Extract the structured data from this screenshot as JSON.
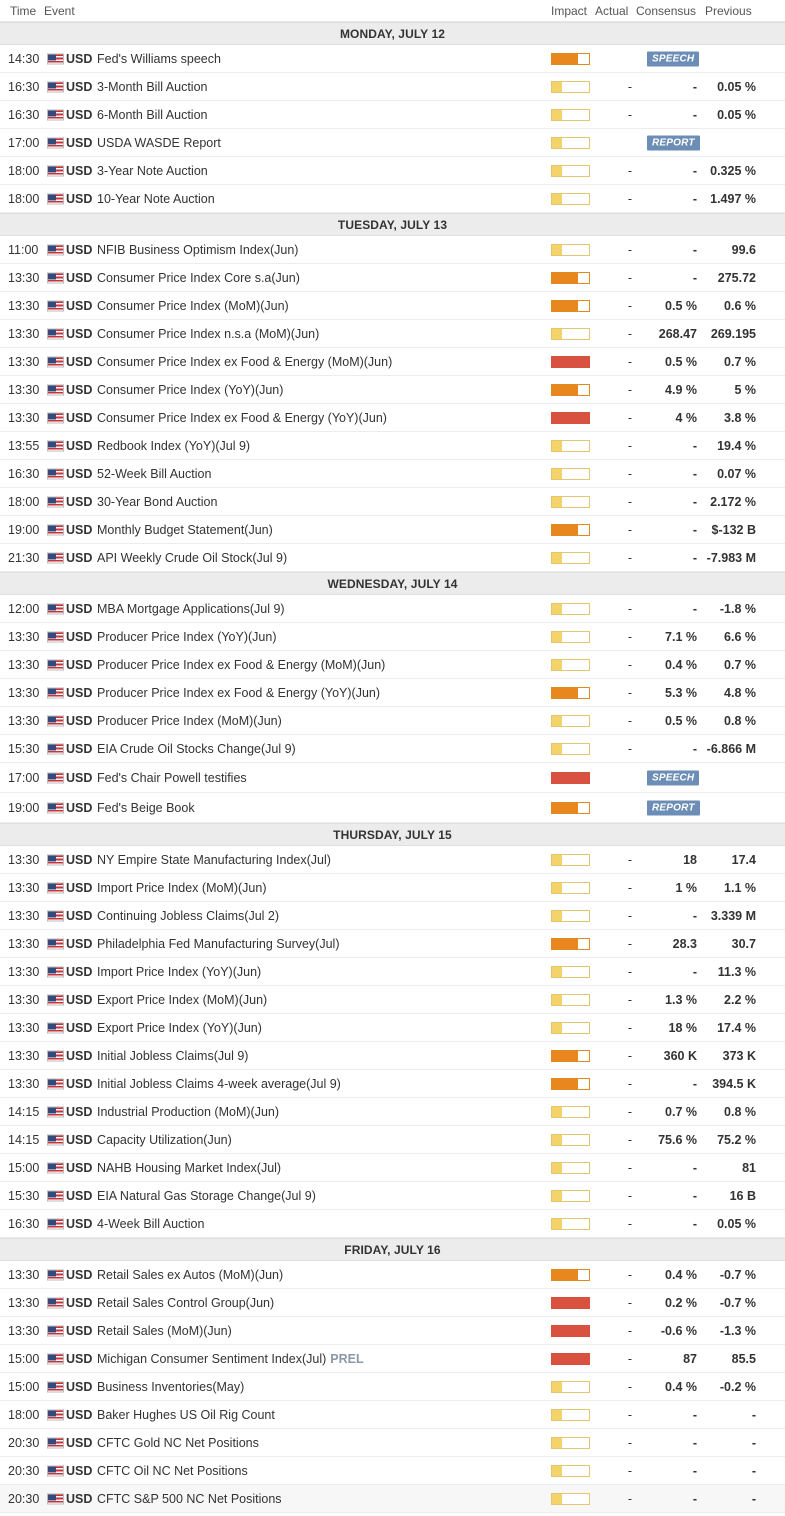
{
  "header": {
    "time": "Time",
    "event": "Event",
    "impact": "Impact",
    "actual": "Actual",
    "consensus": "Consensus",
    "previous": "Previous"
  },
  "days": [
    {
      "label": "MONDAY, JULY 12",
      "events": [
        {
          "time": "14:30",
          "currency": "USD",
          "event": "Fed's Williams speech",
          "impact": "med",
          "actual": "",
          "consensus": "",
          "previous": "",
          "tag": "SPEECH"
        },
        {
          "time": "16:30",
          "currency": "USD",
          "event": "3-Month Bill Auction",
          "impact": "low",
          "actual": "-",
          "consensus": "-",
          "previous": "0.05 %"
        },
        {
          "time": "16:30",
          "currency": "USD",
          "event": "6-Month Bill Auction",
          "impact": "low",
          "actual": "-",
          "consensus": "-",
          "previous": "0.05 %"
        },
        {
          "time": "17:00",
          "currency": "USD",
          "event": "USDA WASDE Report",
          "impact": "low",
          "actual": "",
          "consensus": "",
          "previous": "",
          "tag": "REPORT"
        },
        {
          "time": "18:00",
          "currency": "USD",
          "event": "3-Year Note Auction",
          "impact": "low",
          "actual": "-",
          "consensus": "-",
          "previous": "0.325 %"
        },
        {
          "time": "18:00",
          "currency": "USD",
          "event": "10-Year Note Auction",
          "impact": "low",
          "actual": "-",
          "consensus": "-",
          "previous": "1.497 %"
        }
      ]
    },
    {
      "label": "TUESDAY, JULY 13",
      "events": [
        {
          "time": "11:00",
          "currency": "USD",
          "event": "NFIB Business Optimism Index(Jun)",
          "impact": "low",
          "actual": "-",
          "consensus": "-",
          "previous": "99.6"
        },
        {
          "time": "13:30",
          "currency": "USD",
          "event": "Consumer Price Index Core s.a(Jun)",
          "impact": "med",
          "actual": "-",
          "consensus": "-",
          "previous": "275.72"
        },
        {
          "time": "13:30",
          "currency": "USD",
          "event": "Consumer Price Index (MoM)(Jun)",
          "impact": "med",
          "actual": "-",
          "consensus": "0.5 %",
          "previous": "0.6 %"
        },
        {
          "time": "13:30",
          "currency": "USD",
          "event": "Consumer Price Index n.s.a (MoM)(Jun)",
          "impact": "low",
          "actual": "-",
          "consensus": "268.47",
          "previous": "269.195"
        },
        {
          "time": "13:30",
          "currency": "USD",
          "event": "Consumer Price Index ex Food & Energy (MoM)(Jun)",
          "impact": "high",
          "actual": "-",
          "consensus": "0.5 %",
          "previous": "0.7 %"
        },
        {
          "time": "13:30",
          "currency": "USD",
          "event": "Consumer Price Index (YoY)(Jun)",
          "impact": "med",
          "actual": "-",
          "consensus": "4.9 %",
          "previous": "5 %"
        },
        {
          "time": "13:30",
          "currency": "USD",
          "event": "Consumer Price Index ex Food & Energy (YoY)(Jun)",
          "impact": "high",
          "actual": "-",
          "consensus": "4 %",
          "previous": "3.8 %"
        },
        {
          "time": "13:55",
          "currency": "USD",
          "event": "Redbook Index (YoY)(Jul 9)",
          "impact": "low",
          "actual": "-",
          "consensus": "-",
          "previous": "19.4 %"
        },
        {
          "time": "16:30",
          "currency": "USD",
          "event": "52-Week Bill Auction",
          "impact": "low",
          "actual": "-",
          "consensus": "-",
          "previous": "0.07 %"
        },
        {
          "time": "18:00",
          "currency": "USD",
          "event": "30-Year Bond Auction",
          "impact": "low",
          "actual": "-",
          "consensus": "-",
          "previous": "2.172 %"
        },
        {
          "time": "19:00",
          "currency": "USD",
          "event": "Monthly Budget Statement(Jun)",
          "impact": "med",
          "actual": "-",
          "consensus": "-",
          "previous": "$-132 B"
        },
        {
          "time": "21:30",
          "currency": "USD",
          "event": "API Weekly Crude Oil Stock(Jul 9)",
          "impact": "low",
          "actual": "-",
          "consensus": "-",
          "previous": "-7.983 M"
        }
      ]
    },
    {
      "label": "WEDNESDAY, JULY 14",
      "events": [
        {
          "time": "12:00",
          "currency": "USD",
          "event": "MBA Mortgage Applications(Jul 9)",
          "impact": "low",
          "actual": "-",
          "consensus": "-",
          "previous": "-1.8 %"
        },
        {
          "time": "13:30",
          "currency": "USD",
          "event": "Producer Price Index (YoY)(Jun)",
          "impact": "low",
          "actual": "-",
          "consensus": "7.1 %",
          "previous": "6.6 %"
        },
        {
          "time": "13:30",
          "currency": "USD",
          "event": "Producer Price Index ex Food & Energy (MoM)(Jun)",
          "impact": "low",
          "actual": "-",
          "consensus": "0.4 %",
          "previous": "0.7 %"
        },
        {
          "time": "13:30",
          "currency": "USD",
          "event": "Producer Price Index ex Food & Energy (YoY)(Jun)",
          "impact": "med",
          "actual": "-",
          "consensus": "5.3 %",
          "previous": "4.8 %"
        },
        {
          "time": "13:30",
          "currency": "USD",
          "event": "Producer Price Index (MoM)(Jun)",
          "impact": "low",
          "actual": "-",
          "consensus": "0.5 %",
          "previous": "0.8 %"
        },
        {
          "time": "15:30",
          "currency": "USD",
          "event": "EIA Crude Oil Stocks Change(Jul 9)",
          "impact": "low",
          "actual": "-",
          "consensus": "-",
          "previous": "-6.866 M"
        },
        {
          "time": "17:00",
          "currency": "USD",
          "event": "Fed's Chair Powell testifies",
          "impact": "high",
          "actual": "",
          "consensus": "",
          "previous": "",
          "tag": "SPEECH",
          "tall": true
        },
        {
          "time": "19:00",
          "currency": "USD",
          "event": "Fed's Beige Book",
          "impact": "med",
          "actual": "",
          "consensus": "",
          "previous": "",
          "tag": "REPORT",
          "tall": true
        }
      ]
    },
    {
      "label": "THURSDAY, JULY 15",
      "events": [
        {
          "time": "13:30",
          "currency": "USD",
          "event": "NY Empire State Manufacturing Index(Jul)",
          "impact": "low",
          "actual": "-",
          "consensus": "18",
          "previous": "17.4"
        },
        {
          "time": "13:30",
          "currency": "USD",
          "event": "Import Price Index (MoM)(Jun)",
          "impact": "low",
          "actual": "-",
          "consensus": "1 %",
          "previous": "1.1 %"
        },
        {
          "time": "13:30",
          "currency": "USD",
          "event": "Continuing Jobless Claims(Jul 2)",
          "impact": "low",
          "actual": "-",
          "consensus": "-",
          "previous": "3.339 M"
        },
        {
          "time": "13:30",
          "currency": "USD",
          "event": "Philadelphia Fed Manufacturing Survey(Jul)",
          "impact": "med",
          "actual": "-",
          "consensus": "28.3",
          "previous": "30.7"
        },
        {
          "time": "13:30",
          "currency": "USD",
          "event": "Import Price Index (YoY)(Jun)",
          "impact": "low",
          "actual": "-",
          "consensus": "-",
          "previous": "11.3 %"
        },
        {
          "time": "13:30",
          "currency": "USD",
          "event": "Export Price Index (MoM)(Jun)",
          "impact": "low",
          "actual": "-",
          "consensus": "1.3 %",
          "previous": "2.2 %"
        },
        {
          "time": "13:30",
          "currency": "USD",
          "event": "Export Price Index (YoY)(Jun)",
          "impact": "low",
          "actual": "-",
          "consensus": "18 %",
          "previous": "17.4 %"
        },
        {
          "time": "13:30",
          "currency": "USD",
          "event": "Initial Jobless Claims(Jul 9)",
          "impact": "med",
          "actual": "-",
          "consensus": "360 K",
          "previous": "373 K"
        },
        {
          "time": "13:30",
          "currency": "USD",
          "event": "Initial Jobless Claims 4-week average(Jul 9)",
          "impact": "med",
          "actual": "-",
          "consensus": "-",
          "previous": "394.5 K"
        },
        {
          "time": "14:15",
          "currency": "USD",
          "event": "Industrial Production (MoM)(Jun)",
          "impact": "low",
          "actual": "-",
          "consensus": "0.7 %",
          "previous": "0.8 %"
        },
        {
          "time": "14:15",
          "currency": "USD",
          "event": "Capacity Utilization(Jun)",
          "impact": "low",
          "actual": "-",
          "consensus": "75.6 %",
          "previous": "75.2 %"
        },
        {
          "time": "15:00",
          "currency": "USD",
          "event": "NAHB Housing Market Index(Jul)",
          "impact": "low",
          "actual": "-",
          "consensus": "-",
          "previous": "81"
        },
        {
          "time": "15:30",
          "currency": "USD",
          "event": "EIA Natural Gas Storage Change(Jul 9)",
          "impact": "low",
          "actual": "-",
          "consensus": "-",
          "previous": "16 B"
        },
        {
          "time": "16:30",
          "currency": "USD",
          "event": "4-Week Bill Auction",
          "impact": "low",
          "actual": "-",
          "consensus": "-",
          "previous": "0.05 %"
        }
      ]
    },
    {
      "label": "FRIDAY, JULY 16",
      "events": [
        {
          "time": "13:30",
          "currency": "USD",
          "event": "Retail Sales ex Autos (MoM)(Jun)",
          "impact": "med",
          "actual": "-",
          "consensus": "0.4 %",
          "previous": "-0.7 %"
        },
        {
          "time": "13:30",
          "currency": "USD",
          "event": "Retail Sales Control Group(Jun)",
          "impact": "high",
          "actual": "-",
          "consensus": "0.2 %",
          "previous": "-0.7 %"
        },
        {
          "time": "13:30",
          "currency": "USD",
          "event": "Retail Sales (MoM)(Jun)",
          "impact": "high",
          "actual": "-",
          "consensus": "-0.6 %",
          "previous": "-1.3 %"
        },
        {
          "time": "15:00",
          "currency": "USD",
          "event": "Michigan Consumer Sentiment Index(Jul)",
          "prel": "PREL",
          "impact": "high",
          "actual": "-",
          "consensus": "87",
          "previous": "85.5"
        },
        {
          "time": "15:00",
          "currency": "USD",
          "event": "Business Inventories(May)",
          "impact": "low",
          "actual": "-",
          "consensus": "0.4 %",
          "previous": "-0.2 %"
        },
        {
          "time": "18:00",
          "currency": "USD",
          "event": "Baker Hughes US Oil Rig Count",
          "impact": "low",
          "actual": "-",
          "consensus": "-",
          "previous": "-"
        },
        {
          "time": "20:30",
          "currency": "USD",
          "event": "CFTC Gold NC Net Positions",
          "impact": "low",
          "actual": "-",
          "consensus": "-",
          "previous": "-"
        },
        {
          "time": "20:30",
          "currency": "USD",
          "event": "CFTC Oil NC Net Positions",
          "impact": "low",
          "actual": "-",
          "consensus": "-",
          "previous": "-"
        },
        {
          "time": "20:30",
          "currency": "USD",
          "event": "CFTC S&P 500 NC Net Positions",
          "impact": "low",
          "actual": "-",
          "consensus": "-",
          "previous": "-",
          "grey": true
        }
      ]
    }
  ]
}
